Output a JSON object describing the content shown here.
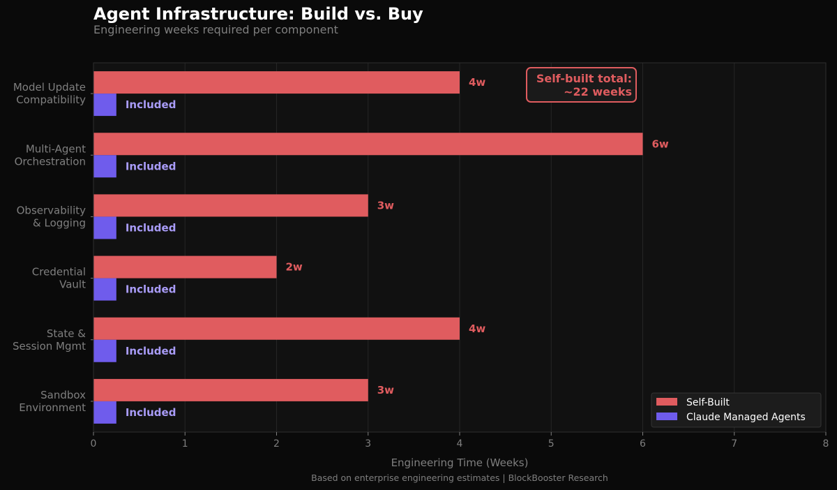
{
  "title": "Agent Infrastructure: Build vs. Buy",
  "subtitle": "Engineering weeks required per component",
  "source": "Based on enterprise engineering estimates  |  BlockBooster Research",
  "annotation": {
    "line1": "Self-built total:",
    "line2": "~22 weeks"
  },
  "colors": {
    "background": "#0a0a0a",
    "plot_background": "#111111",
    "self_built": "#e05c5f",
    "managed": "#6f5cec",
    "managed_label": "#a99cf8",
    "muted_text": "#7f7f7f"
  },
  "chart_data": {
    "type": "bar",
    "orientation": "horizontal",
    "categories": [
      [
        "Model Update",
        "Compatibility"
      ],
      [
        "Multi-Agent",
        "Orchestration"
      ],
      [
        "Observability",
        "& Logging"
      ],
      [
        "Credential",
        "Vault"
      ],
      [
        "State &",
        "Session Mgmt"
      ],
      [
        "Sandbox",
        "Environment"
      ]
    ],
    "series": [
      {
        "name": "Self-Built",
        "values": [
          4,
          6,
          3,
          2,
          4,
          3
        ],
        "labels": [
          "4w",
          "6w",
          "3w",
          "2w",
          "4w",
          "3w"
        ]
      },
      {
        "name": "Claude Managed Agents",
        "values": [
          0.25,
          0.25,
          0.25,
          0.25,
          0.25,
          0.25
        ],
        "labels": [
          "Included",
          "Included",
          "Included",
          "Included",
          "Included",
          "Included"
        ]
      }
    ],
    "xlabel": "Engineering Time (Weeks)",
    "xlim": [
      0,
      8
    ],
    "xticks": [
      "0",
      "1",
      "2",
      "3",
      "4",
      "5",
      "6",
      "7",
      "8"
    ],
    "grid": "vertical",
    "legend_position": "bottom-right"
  }
}
